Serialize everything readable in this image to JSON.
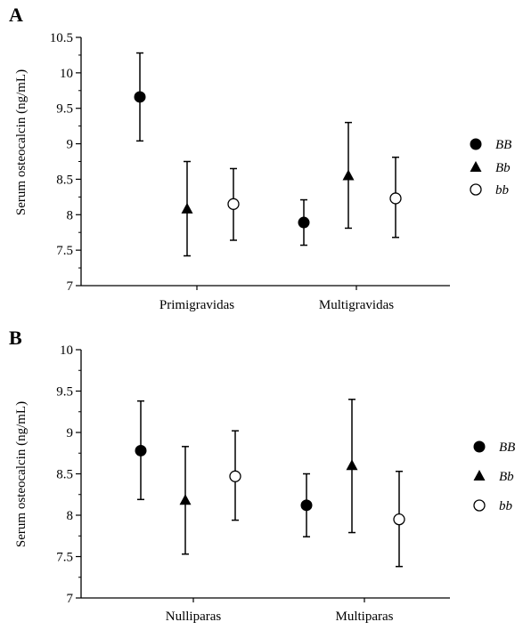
{
  "chart_data": [
    {
      "type": "scatter",
      "panel_label": "A",
      "ylabel": "Serum osteocalcin (ng/mL)",
      "ylim": [
        7,
        10.5
      ],
      "yticks": [
        "7",
        "7.5",
        "8",
        "8.5",
        "9",
        "9.5",
        "10",
        "10.5"
      ],
      "categories": [
        "Primigravidas",
        "Multigravidas"
      ],
      "error_bars": true,
      "series": [
        {
          "name": "BB",
          "marker": "filled-circle",
          "values": [
            9.66,
            7.89
          ],
          "lower": [
            9.04,
            7.57
          ],
          "upper": [
            10.28,
            8.21
          ]
        },
        {
          "name": "Bb",
          "marker": "filled-triangle",
          "values": [
            8.08,
            8.55
          ],
          "lower": [
            7.42,
            7.81
          ],
          "upper": [
            8.75,
            9.3
          ]
        },
        {
          "name": "bb",
          "marker": "open-circle",
          "values": [
            8.15,
            8.23
          ],
          "lower": [
            7.64,
            7.68
          ],
          "upper": [
            8.65,
            8.81
          ]
        }
      ],
      "legend": {
        "position": "right",
        "entries": [
          "BB",
          "Bb",
          "bb"
        ]
      }
    },
    {
      "type": "scatter",
      "panel_label": "B",
      "ylabel": "Serum osteocalcin (ng/mL)",
      "ylim": [
        7,
        10
      ],
      "yticks": [
        "7",
        "7.5",
        "8",
        "8.5",
        "9",
        "9.5",
        "10"
      ],
      "categories": [
        "Nulliparas",
        "Multiparas"
      ],
      "error_bars": true,
      "series": [
        {
          "name": "BB",
          "marker": "filled-circle",
          "values": [
            8.78,
            8.12
          ],
          "lower": [
            8.19,
            7.74
          ],
          "upper": [
            9.38,
            8.5
          ]
        },
        {
          "name": "Bb",
          "marker": "filled-triangle",
          "values": [
            8.18,
            8.6
          ],
          "lower": [
            7.53,
            7.79
          ],
          "upper": [
            8.83,
            9.4
          ]
        },
        {
          "name": "bb",
          "marker": "open-circle",
          "values": [
            8.47,
            7.95
          ],
          "lower": [
            7.94,
            7.38
          ],
          "upper": [
            9.02,
            8.53
          ]
        }
      ],
      "legend": {
        "position": "right",
        "entries": [
          "BB",
          "Bb",
          "bb"
        ]
      }
    }
  ]
}
